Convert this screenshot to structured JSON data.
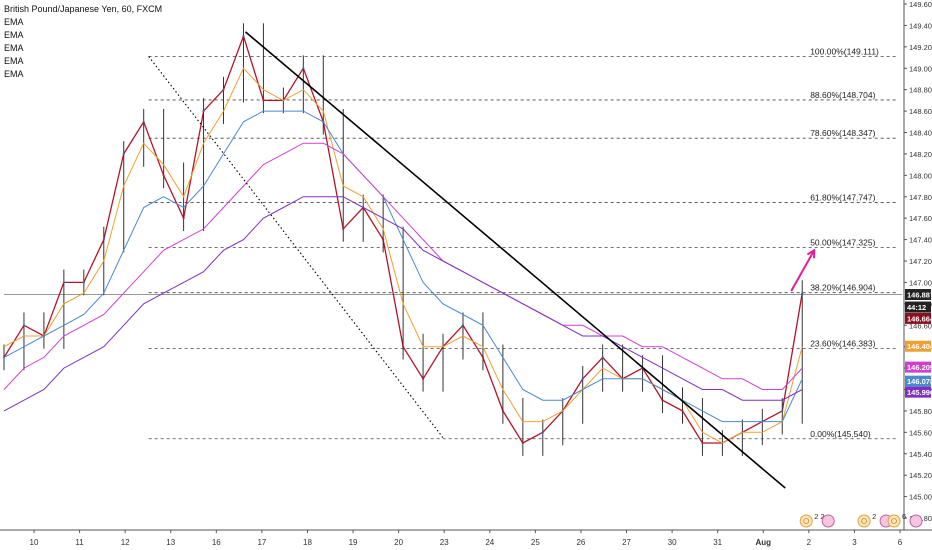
{
  "header": {
    "title": "British Pound/Japanese Yen, 60, FXCM",
    "indicators": [
      "EMA",
      "EMA",
      "EMA",
      "EMA",
      "EMA"
    ]
  },
  "chart_data": {
    "type": "line",
    "title": "British Pound/Japanese Yen, 60, FXCM",
    "xlabel": "",
    "ylabel": "",
    "ylim": [
      144.8,
      149.6
    ],
    "grid": false,
    "y_ticks": [
      "149.600",
      "149.400",
      "149.200",
      "149.000",
      "148.800",
      "148.600",
      "148.400",
      "148.200",
      "148.000",
      "147.800",
      "147.600",
      "147.400",
      "147.200",
      "147.000",
      "146.800",
      "146.600",
      "146.400",
      "146.200",
      "146.000",
      "145.800",
      "145.600",
      "145.400",
      "145.200",
      "145.000",
      "144.800"
    ],
    "x_ticks": [
      "10",
      "11",
      "12",
      "13",
      "16",
      "17",
      "18",
      "19",
      "20",
      "23",
      "24",
      "25",
      "26",
      "27",
      "30",
      "31",
      "Aug",
      "2",
      "3",
      "6"
    ],
    "x": [
      0,
      2,
      4,
      6,
      8,
      10,
      12,
      14,
      16,
      18,
      20,
      22,
      24,
      26,
      28,
      30,
      32,
      34,
      36,
      38,
      40,
      42,
      44,
      46,
      48,
      50,
      52,
      54,
      56,
      58,
      60,
      62,
      64,
      66,
      68,
      70,
      72,
      74,
      76,
      78,
      80
    ],
    "series": [
      {
        "name": "",
        "role": "price",
        "color": "#b2152a",
        "values": [
          146.3,
          146.6,
          146.5,
          147.0,
          147.0,
          147.4,
          148.2,
          148.5,
          148.0,
          147.6,
          148.6,
          148.8,
          149.3,
          148.7,
          148.7,
          149.0,
          148.5,
          147.5,
          147.7,
          147.4,
          146.4,
          146.1,
          146.4,
          146.6,
          146.3,
          145.8,
          145.5,
          145.6,
          145.8,
          146.1,
          146.3,
          146.1,
          146.2,
          145.9,
          145.8,
          145.5,
          145.5,
          145.6,
          145.7,
          145.8,
          146.9
        ]
      },
      {
        "name": "",
        "role": "ema",
        "color": "#f0a030",
        "values": [
          146.4,
          146.5,
          146.5,
          146.8,
          146.9,
          147.2,
          147.9,
          148.3,
          148.1,
          147.8,
          148.3,
          148.6,
          149.0,
          148.8,
          148.7,
          148.8,
          148.6,
          147.9,
          147.8,
          147.5,
          146.8,
          146.4,
          146.4,
          146.5,
          146.4,
          146.0,
          145.7,
          145.7,
          145.8,
          146.0,
          146.2,
          146.1,
          146.1,
          146.0,
          145.9,
          145.6,
          145.5,
          145.6,
          145.6,
          145.7,
          146.4
        ]
      },
      {
        "name": "",
        "role": "ema",
        "color": "#4a8ad0",
        "values": [
          146.3,
          146.4,
          146.5,
          146.6,
          146.7,
          146.9,
          147.3,
          147.7,
          147.8,
          147.7,
          147.9,
          148.2,
          148.5,
          148.6,
          148.6,
          148.6,
          148.5,
          148.2,
          148.0,
          147.8,
          147.4,
          147.0,
          146.8,
          146.7,
          146.6,
          146.3,
          146.0,
          145.9,
          145.9,
          146.0,
          146.1,
          146.1,
          146.1,
          146.0,
          145.9,
          145.8,
          145.7,
          145.7,
          145.7,
          145.7,
          146.1
        ]
      },
      {
        "name": "",
        "role": "ema",
        "color": "#d040d0",
        "values": [
          146.0,
          146.2,
          146.3,
          146.5,
          146.6,
          146.7,
          146.9,
          147.1,
          147.3,
          147.4,
          147.5,
          147.7,
          147.9,
          148.1,
          148.2,
          148.3,
          148.3,
          148.2,
          148.0,
          147.8,
          147.6,
          147.4,
          147.2,
          147.1,
          147.0,
          146.9,
          146.8,
          146.7,
          146.6,
          146.6,
          146.5,
          146.5,
          146.4,
          146.4,
          146.3,
          146.2,
          146.1,
          146.1,
          146.0,
          146.0,
          146.2
        ]
      },
      {
        "name": "",
        "role": "ema",
        "color": "#8030c0",
        "values": [
          145.8,
          145.9,
          146.0,
          146.2,
          146.3,
          146.4,
          146.6,
          146.8,
          146.9,
          147.0,
          147.1,
          147.3,
          147.4,
          147.6,
          147.7,
          147.8,
          147.8,
          147.8,
          147.7,
          147.6,
          147.5,
          147.3,
          147.2,
          147.1,
          147.0,
          146.9,
          146.8,
          146.7,
          146.6,
          146.5,
          146.5,
          146.4,
          146.3,
          146.2,
          146.1,
          146.0,
          146.0,
          145.9,
          145.9,
          145.9,
          146.0
        ]
      }
    ],
    "fib_levels": [
      {
        "label": "100.00%(149.111)",
        "value": 149.111
      },
      {
        "label": "88.60%(148.704)",
        "value": 148.704
      },
      {
        "label": "78.60%(148.347)",
        "value": 148.347
      },
      {
        "label": "61.80%(147.747)",
        "value": 147.747
      },
      {
        "label": "50.00%(147.325)",
        "value": 147.325
      },
      {
        "label": "38.20%(146.904)",
        "value": 146.904
      },
      {
        "label": "23.60%(146.383)",
        "value": 146.383
      },
      {
        "label": "0.00%(145.540)",
        "value": 145.54
      }
    ],
    "price_labels": [
      {
        "text": "146.887",
        "value": 146.887,
        "bg": "#222222",
        "fg": "#ffffff"
      },
      {
        "text": "44:12",
        "value": 146.77,
        "bg": "#222222",
        "fg": "#ffffff"
      },
      {
        "text": "146.664",
        "value": 146.664,
        "bg": "#8b1020",
        "fg": "#ffffff"
      },
      {
        "text": "146.404",
        "value": 146.404,
        "bg": "#f0a030",
        "fg": "#ffffff"
      },
      {
        "text": "146.209",
        "value": 146.209,
        "bg": "#d040d0",
        "fg": "#ffffff"
      },
      {
        "text": "146.078",
        "value": 146.078,
        "bg": "#4a8ad0",
        "fg": "#ffffff"
      },
      {
        "text": "145.996",
        "value": 145.996,
        "bg": "#8030c0",
        "fg": "#ffffff"
      }
    ],
    "trendline": {
      "from": {
        "x": 24.2,
        "y": 149.34
      },
      "to": {
        "x": 78.3,
        "y": 145.08
      },
      "color": "#000000"
    },
    "channel_line": {
      "from": {
        "x": 14.5,
        "y": 149.11
      },
      "to": {
        "x": 44.0,
        "y": 145.55
      },
      "color": "#000000",
      "style": "dotted"
    },
    "projection_arrow": {
      "from": {
        "x": 78.9,
        "y": 146.92
      },
      "to": {
        "x": 81.2,
        "y": 147.3
      },
      "color": "#e0209a"
    },
    "current_price": 146.887,
    "event_badges": [
      {
        "label": "2 2",
        "x": 80.0
      },
      {
        "label": "2",
        "x": 85.8
      },
      {
        "label": "6",
        "x": 88.8
      }
    ]
  }
}
